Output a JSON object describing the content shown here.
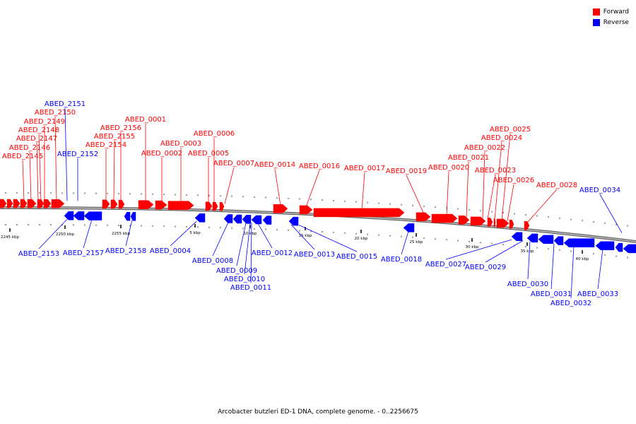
{
  "colors": {
    "forward": "#ff0000",
    "reverse": "#0000ff",
    "backbone": "#888888"
  },
  "legend": {
    "forward": "Forward",
    "reverse": "Reverse"
  },
  "caption": "Arcobacter butzleri ED-1 DNA, complete genome. - 0..2256675",
  "scale_labels": [
    "2245 kbp",
    "2250 kbp",
    "2255 kbp",
    "5 kbp",
    "10 kbp",
    "15 kbp",
    "20 kbp",
    "25 kbp",
    "30 kbp",
    "35 kbp",
    "40 kbp"
  ],
  "forward_labels": [
    "ABED_2145",
    "ABED_2146",
    "ABED_2147",
    "ABED_2148",
    "ABED_2149",
    "ABED_2150",
    "ABED_2154",
    "ABED_2155",
    "ABED_2156",
    "ABED_0001",
    "ABED_0002",
    "ABED_0003",
    "ABED_0005",
    "ABED_0006",
    "ABED_0007",
    "ABED_0014",
    "ABED_0016",
    "ABED_0017",
    "ABED_0019",
    "ABED_0020",
    "ABED_0021",
    "ABED_0022",
    "ABED_0023",
    "ABED_0024",
    "ABED_0025",
    "ABED_0026",
    "ABED_0028"
  ],
  "reverse_labels": [
    "ABED_2151",
    "ABED_2152",
    "ABED_2153",
    "ABED_2157",
    "ABED_2158",
    "ABED_0004",
    "ABED_0008",
    "ABED_0009",
    "ABED_0010",
    "ABED_0011",
    "ABED_0012",
    "ABED_0013",
    "ABED_0015",
    "ABED_0018",
    "ABED_0027",
    "ABED_0029",
    "ABED_0030",
    "ABED_0031",
    "ABED_0032",
    "ABED_0033",
    "ABED_0034"
  ]
}
